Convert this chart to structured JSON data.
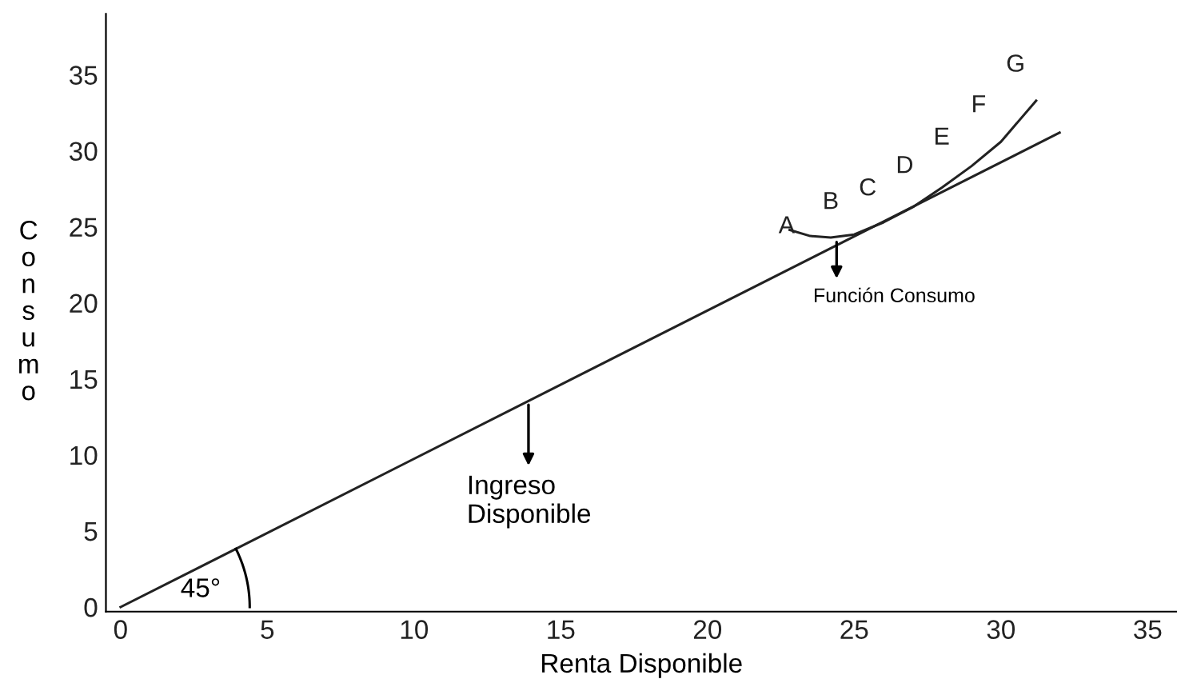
{
  "chart_data": {
    "type": "line",
    "xlabel": "Renta Disponible",
    "ylabel": "Consumo",
    "xlim": [
      -0.5,
      36
    ],
    "ylim": [
      -0.3,
      39
    ],
    "xticks": [
      0,
      5,
      10,
      15,
      20,
      25,
      30,
      35
    ],
    "yticks": [
      0,
      5,
      10,
      15,
      20,
      25,
      30,
      35
    ],
    "grid": false,
    "marker": "none",
    "line_style": "solid",
    "series": [
      {
        "color": "#222222",
        "x": [
          0,
          32
        ],
        "values": [
          0,
          31.2
        ]
      },
      {
        "color": "#222222",
        "x": [
          22.8,
          23.5,
          24.2,
          25,
          26,
          27,
          28,
          29,
          30,
          31.2
        ],
        "values": [
          24.8,
          24.4,
          24.3,
          24.5,
          25.3,
          26.3,
          27.6,
          29.0,
          30.6,
          33.3
        ]
      }
    ],
    "annotations": [
      {
        "text": "A",
        "x": 22.7,
        "y": 25.0
      },
      "B",
      "C",
      "D",
      "E",
      "F",
      "G",
      {
        "text": "Ingreso\nDisponible",
        "x": 13.9,
        "y": 13.3
      },
      {
        "text": "Función Consumo",
        "x": 24.4,
        "y": 24.0
      },
      "45°"
    ]
  }
}
